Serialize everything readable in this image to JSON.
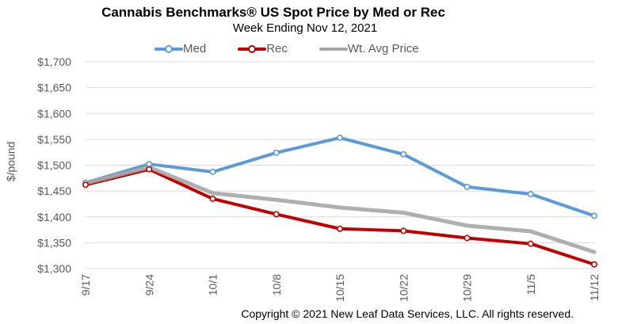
{
  "colors": {
    "med": "#5B9BD5",
    "rec": "#C00000",
    "avg": "#A6A6A6",
    "axis_text": "#595959",
    "grid": "#D9D9D9"
  },
  "chart_data": {
    "type": "line",
    "title": "Cannabis Benchmarks® US Spot Price by Med or Rec",
    "subtitle": "Week Ending Nov 12, 2021",
    "ylabel": "$/pound",
    "xlabel": "",
    "categories": [
      "9/17",
      "9/24",
      "10/1",
      "10/8",
      "10/15",
      "10/22",
      "10/29",
      "11/5",
      "11/12"
    ],
    "ylim": [
      1300,
      1700
    ],
    "yticks": [
      1300,
      1350,
      1400,
      1450,
      1500,
      1550,
      1600,
      1650,
      1700
    ],
    "ytick_labels": [
      "$1,300",
      "$1,350",
      "$1,400",
      "$1,450",
      "$1,500",
      "$1,550",
      "$1,600",
      "$1,650",
      "$1,700"
    ],
    "grid": true,
    "legend_position": "top",
    "series": [
      {
        "name": "Med",
        "color_key": "med",
        "values": [
          1466,
          1502,
          1487,
          1524,
          1553,
          1521,
          1458,
          1444,
          1402
        ]
      },
      {
        "name": "Rec",
        "color_key": "rec",
        "values": [
          1462,
          1492,
          1435,
          1405,
          1377,
          1373,
          1359,
          1348,
          1308
        ]
      },
      {
        "name": "Wt. Avg Price",
        "color_key": "avg",
        "values": [
          1465,
          1496,
          1446,
          1433,
          1418,
          1408,
          1383,
          1372,
          1332
        ]
      }
    ],
    "footer": "Copyright © 2021 New Leaf Data Services, LLC. All rights reserved."
  }
}
